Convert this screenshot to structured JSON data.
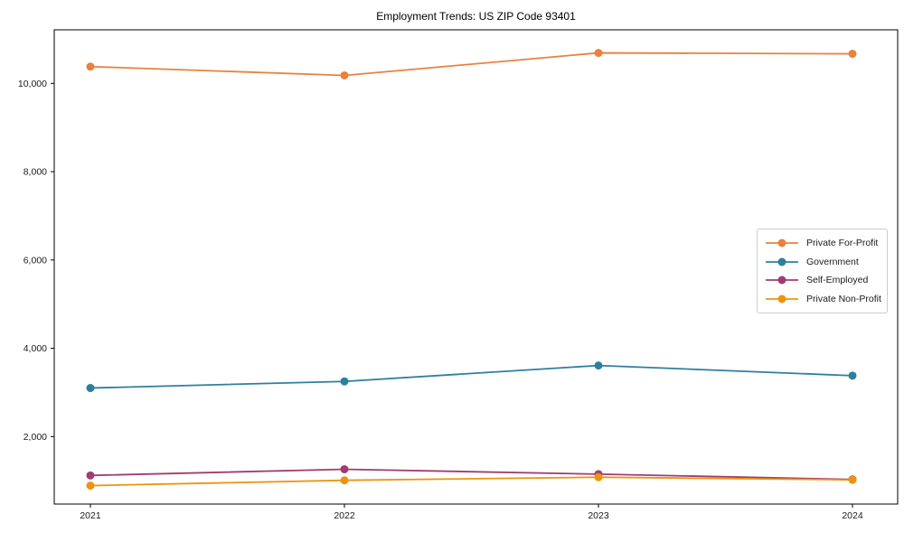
{
  "figure": {
    "background": "#ffffff",
    "spine_color": "#000000",
    "tick_label_color": "#1a1a1a"
  },
  "chart_data": {
    "type": "line",
    "title": "Employment Trends: US ZIP Code 93401",
    "categories": [
      "2021",
      "2022",
      "2023",
      "2024"
    ],
    "series": [
      {
        "name": "Private For-Profit",
        "color": "#E8823E",
        "values": [
          10380,
          10180,
          10690,
          10670
        ]
      },
      {
        "name": "Government",
        "color": "#2E7F9E",
        "values": [
          3100,
          3250,
          3610,
          3380
        ]
      },
      {
        "name": "Self-Employed",
        "color": "#A23B72",
        "values": [
          1120,
          1260,
          1150,
          1030
        ]
      },
      {
        "name": "Private Non-Profit",
        "color": "#EC940E",
        "values": [
          890,
          1010,
          1080,
          1020
        ]
      }
    ],
    "xlabel": "",
    "ylabel": "",
    "ylim": [
      472,
      11213
    ],
    "yticks": [
      2000,
      4000,
      6000,
      8000,
      10000
    ],
    "ytick_labels": [
      "2,000",
      "4,000",
      "6,000",
      "8,000",
      "10,000"
    ],
    "grid": false,
    "legend_position": "center-right",
    "marker": "circle",
    "marker_radius": 4.5,
    "line_width": 1.8
  }
}
